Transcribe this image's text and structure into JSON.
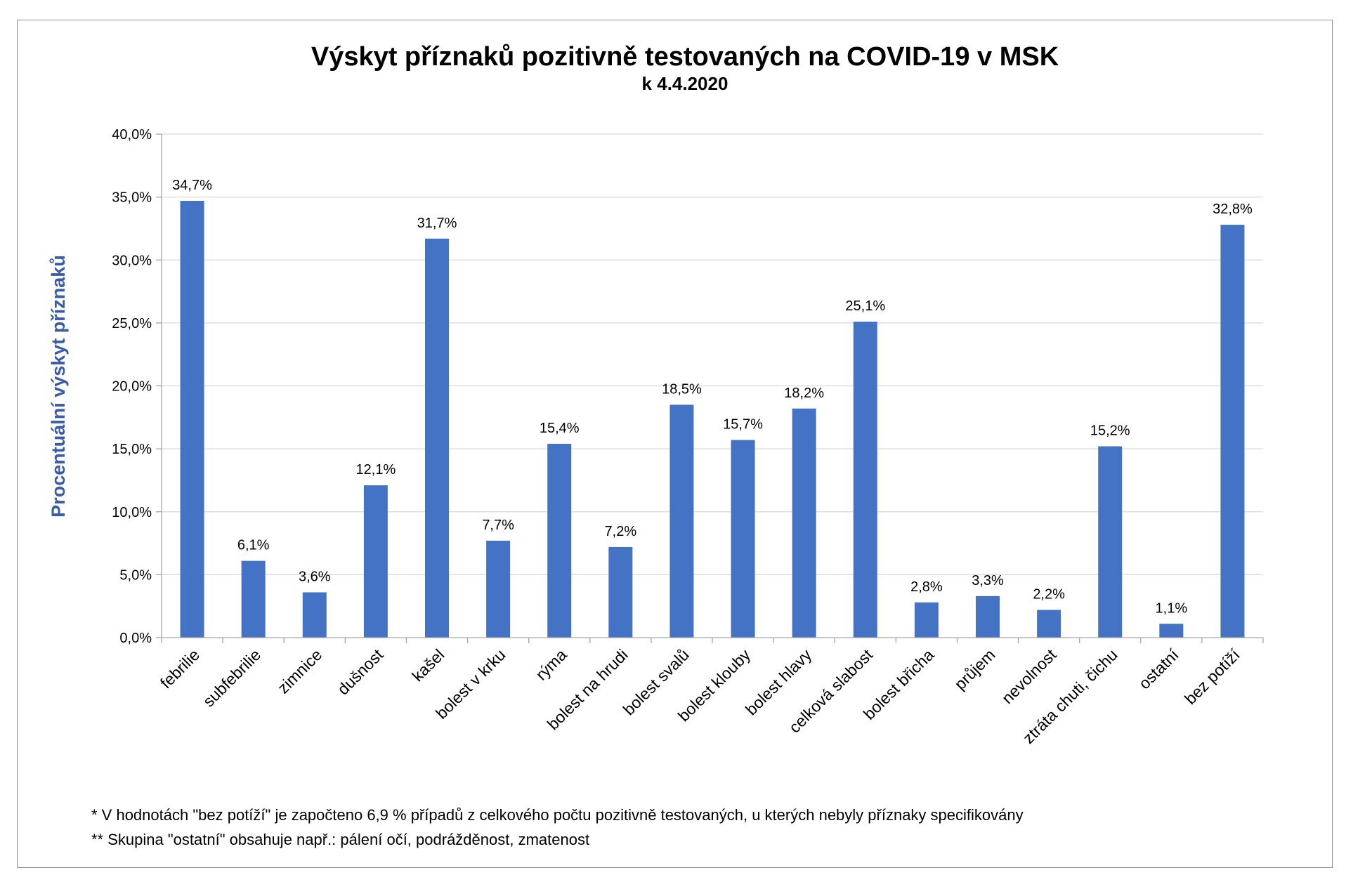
{
  "chart_data": {
    "type": "bar",
    "title": "Výskyt příznaků pozitivně testovaných na COVID-19 v MSK",
    "subtitle": "k 4.4.2020",
    "xlabel": "",
    "ylabel": "Procentuální výskyt příznaků",
    "ylim": [
      0,
      40
    ],
    "y_ticks": [
      "0,0%",
      "5,0%",
      "10,0%",
      "15,0%",
      "20,0%",
      "25,0%",
      "30,0%",
      "35,0%",
      "40,0%"
    ],
    "grid": true,
    "categories": [
      "febrilie",
      "subfebrilie",
      "zimnice",
      "dušnost",
      "kašel",
      "bolest v krku",
      "rýma",
      "bolest na hrudi",
      "bolest svalů",
      "bolest klouby",
      "bolest hlavy",
      "celková slabost",
      "bolest břicha",
      "průjem",
      "nevolnost",
      "ztráta chuti, čichu",
      "ostatní",
      "bez potíží"
    ],
    "values": [
      34.7,
      6.1,
      3.6,
      12.1,
      31.7,
      7.7,
      15.4,
      7.2,
      18.5,
      15.7,
      18.2,
      25.1,
      2.8,
      3.3,
      2.2,
      15.2,
      1.1,
      32.8
    ],
    "data_labels": [
      "34,7%",
      "6,1%",
      "3,6%",
      "12,1%",
      "31,7%",
      "7,7%",
      "15,4%",
      "7,2%",
      "18,5%",
      "15,7%",
      "18,2%",
      "25,1%",
      "2,8%",
      "3,3%",
      "2,2%",
      "15,2%",
      "1,1%",
      "32,8%"
    ],
    "color": "#4472c4"
  },
  "notes": [
    "* V hodnotách \"bez  potíží\" je započteno 6,9 % případů z celkového počtu pozitivně testovaných, u kterých nebyly příznaky specifikovány",
    "** Skupina \"ostatní\" obsahuje např.: pálení očí, podrážděnost, zmatenost"
  ]
}
